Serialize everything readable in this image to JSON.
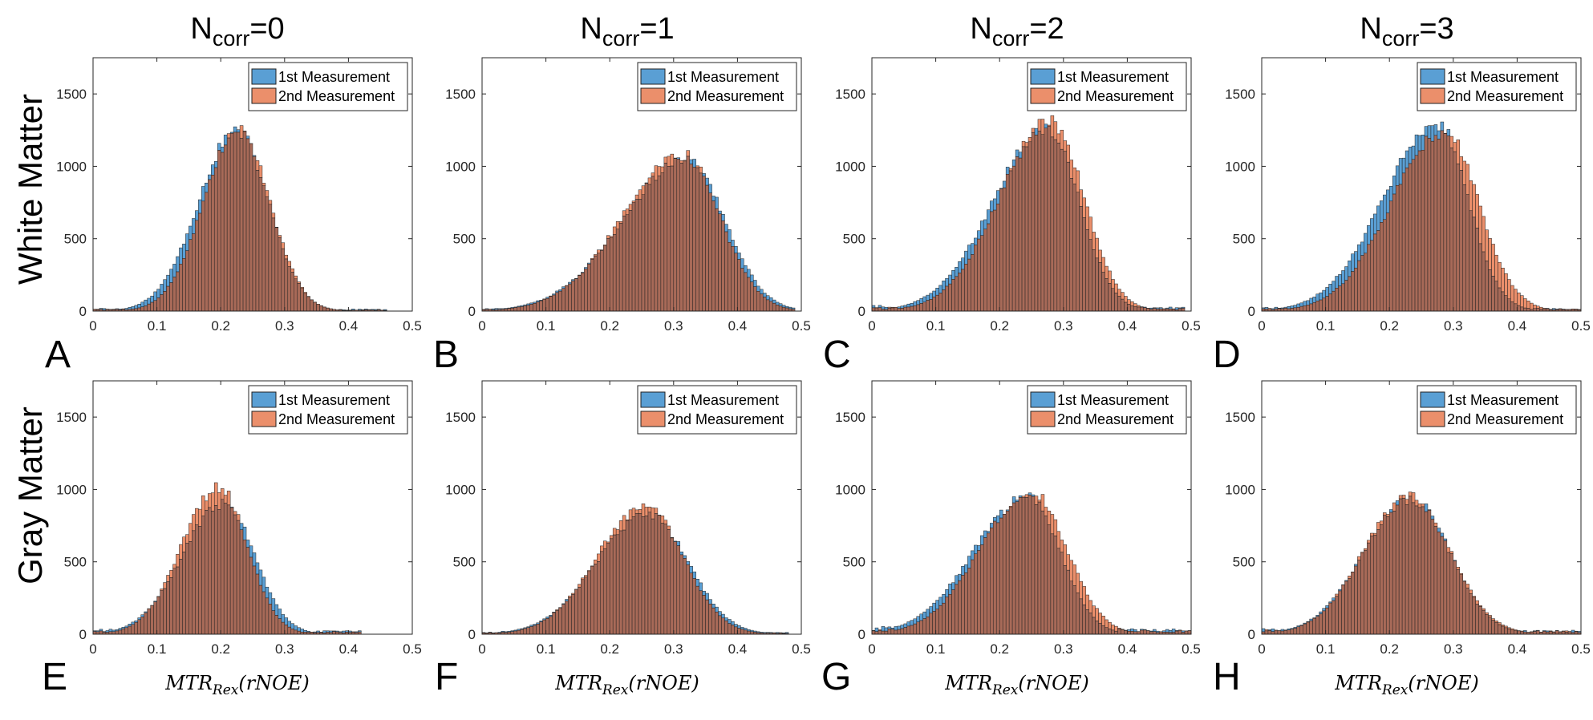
{
  "figure": {
    "column_titles": [
      {
        "base": "N",
        "sub": "corr",
        "suffix": "=0"
      },
      {
        "base": "N",
        "sub": "corr",
        "suffix": "=1"
      },
      {
        "base": "N",
        "sub": "corr",
        "suffix": "=2"
      },
      {
        "base": "N",
        "sub": "corr",
        "suffix": "=3"
      }
    ],
    "row_titles": [
      "White Matter",
      "Gray Matter"
    ],
    "panel_letters": [
      "A",
      "B",
      "C",
      "D",
      "E",
      "F",
      "G",
      "H"
    ],
    "x_axis_label": {
      "base": "MTR",
      "sub": "Rex",
      "suffix": "(rNOE)"
    },
    "legend": [
      "1st Measurement",
      "2nd Measurement"
    ],
    "colors": {
      "series1": "#5a9fd4",
      "series2": "#eb8f6b",
      "overlap": "#a86a58",
      "edge": "#222222"
    }
  },
  "chart_data": [
    {
      "panel": "A",
      "type": "bar",
      "title": "",
      "xlabel": "",
      "ylabel": "",
      "xlim": [
        0,
        0.5
      ],
      "ylim": [
        0,
        1750
      ],
      "xticks": [
        "0",
        "0.1",
        "0.2",
        "0.3",
        "0.4",
        "0.5"
      ],
      "yticks": [
        "0",
        "500",
        "1000",
        "1500"
      ],
      "legend_position": "top-right",
      "series": [
        {
          "name": "1st Measurement",
          "distribution": {
            "mean": 0.225,
            "sd_left": 0.06,
            "sd_right": 0.05,
            "peak": 1240,
            "floor": 15,
            "xmax": 0.46
          }
        },
        {
          "name": "2nd Measurement",
          "distribution": {
            "mean": 0.228,
            "sd_left": 0.055,
            "sd_right": 0.049,
            "peak": 1250,
            "floor": 10,
            "xmax": 0.46
          }
        }
      ]
    },
    {
      "panel": "B",
      "type": "bar",
      "title": "",
      "xlabel": "",
      "ylabel": "",
      "xlim": [
        0,
        0.5
      ],
      "ylim": [
        0,
        1750
      ],
      "xticks": [
        "0",
        "0.1",
        "0.2",
        "0.3",
        "0.4",
        "0.5"
      ],
      "yticks": [
        "0",
        "500",
        "1000",
        "1500"
      ],
      "legend_position": "top-right",
      "series": [
        {
          "name": "1st Measurement",
          "distribution": {
            "mean": 0.32,
            "sd_left": 0.1,
            "sd_right": 0.06,
            "peak": 1040,
            "floor": 15,
            "xmax": 0.49
          }
        },
        {
          "name": "2nd Measurement",
          "distribution": {
            "mean": 0.315,
            "sd_left": 0.095,
            "sd_right": 0.058,
            "peak": 1080,
            "floor": 10,
            "xmax": 0.49
          }
        }
      ]
    },
    {
      "panel": "C",
      "type": "bar",
      "title": "",
      "xlabel": "",
      "ylabel": "",
      "xlim": [
        0,
        0.5
      ],
      "ylim": [
        0,
        1750
      ],
      "xticks": [
        "0",
        "0.1",
        "0.2",
        "0.3",
        "0.4",
        "0.5"
      ],
      "yticks": [
        "0",
        "500",
        "1000",
        "1500"
      ],
      "legend_position": "top-right",
      "series": [
        {
          "name": "1st Measurement",
          "distribution": {
            "mean": 0.275,
            "sd_left": 0.085,
            "sd_right": 0.05,
            "peak": 1260,
            "floor": 30,
            "xmax": 0.49
          }
        },
        {
          "name": "2nd Measurement",
          "distribution": {
            "mean": 0.28,
            "sd_left": 0.08,
            "sd_right": 0.052,
            "peak": 1310,
            "floor": 20,
            "xmax": 0.49
          }
        }
      ]
    },
    {
      "panel": "D",
      "type": "bar",
      "title": "",
      "xlabel": "",
      "ylabel": "",
      "xlim": [
        0,
        0.5
      ],
      "ylim": [
        0,
        1750
      ],
      "xticks": [
        "0",
        "0.1",
        "0.2",
        "0.3",
        "0.4",
        "0.5"
      ],
      "yticks": [
        "0",
        "500",
        "1000",
        "1500"
      ],
      "legend_position": "top-right",
      "series": [
        {
          "name": "1st Measurement",
          "distribution": {
            "mean": 0.275,
            "sd_left": 0.085,
            "sd_right": 0.048,
            "peak": 1290,
            "floor": 20,
            "xmax": 0.5
          }
        },
        {
          "name": "2nd Measurement",
          "distribution": {
            "mean": 0.285,
            "sd_left": 0.082,
            "sd_right": 0.055,
            "peak": 1240,
            "floor": 15,
            "xmax": 0.5
          }
        }
      ]
    },
    {
      "panel": "E",
      "type": "bar",
      "title": "",
      "xlabel": "",
      "ylabel": "",
      "xlim": [
        0,
        0.5
      ],
      "ylim": [
        0,
        1750
      ],
      "xticks": [
        "0",
        "0.1",
        "0.2",
        "0.3",
        "0.4",
        "0.5"
      ],
      "yticks": [
        "0",
        "500",
        "1000",
        "1500"
      ],
      "legend_position": "top-right",
      "series": [
        {
          "name": "1st Measurement",
          "distribution": {
            "mean": 0.205,
            "sd_left": 0.065,
            "sd_right": 0.048,
            "peak": 900,
            "floor": 25,
            "xmax": 0.42
          }
        },
        {
          "name": "2nd Measurement",
          "distribution": {
            "mean": 0.197,
            "sd_left": 0.058,
            "sd_right": 0.045,
            "peak": 1010,
            "floor": 20,
            "xmax": 0.42
          }
        }
      ]
    },
    {
      "panel": "F",
      "type": "bar",
      "title": "",
      "xlabel": "",
      "ylabel": "",
      "xlim": [
        0,
        0.5
      ],
      "ylim": [
        0,
        1750
      ],
      "xticks": [
        "0",
        "0.1",
        "0.2",
        "0.3",
        "0.4",
        "0.5"
      ],
      "yticks": [
        "0",
        "500",
        "1000",
        "1500"
      ],
      "legend_position": "top-right",
      "series": [
        {
          "name": "1st Measurement",
          "distribution": {
            "mean": 0.26,
            "sd_left": 0.08,
            "sd_right": 0.062,
            "peak": 830,
            "floor": 15,
            "xmax": 0.48
          }
        },
        {
          "name": "2nd Measurement",
          "distribution": {
            "mean": 0.255,
            "sd_left": 0.075,
            "sd_right": 0.06,
            "peak": 880,
            "floor": 10,
            "xmax": 0.48
          }
        }
      ]
    },
    {
      "panel": "G",
      "type": "bar",
      "title": "",
      "xlabel": "",
      "ylabel": "",
      "xlim": [
        0,
        0.5
      ],
      "ylim": [
        0,
        1750
      ],
      "xticks": [
        "0",
        "0.1",
        "0.2",
        "0.3",
        "0.4",
        "0.5"
      ],
      "yticks": [
        "0",
        "500",
        "1000",
        "1500"
      ],
      "legend_position": "top-right",
      "series": [
        {
          "name": "1st Measurement",
          "distribution": {
            "mean": 0.245,
            "sd_left": 0.085,
            "sd_right": 0.05,
            "peak": 950,
            "floor": 40,
            "xmax": 0.5
          }
        },
        {
          "name": "2nd Measurement",
          "distribution": {
            "mean": 0.25,
            "sd_left": 0.08,
            "sd_right": 0.055,
            "peak": 980,
            "floor": 30,
            "xmax": 0.5
          }
        }
      ]
    },
    {
      "panel": "H",
      "type": "bar",
      "title": "",
      "xlabel": "",
      "ylabel": "",
      "xlim": [
        0,
        0.5
      ],
      "ylim": [
        0,
        1750
      ],
      "xticks": [
        "0",
        "0.1",
        "0.2",
        "0.3",
        "0.4",
        "0.5"
      ],
      "yticks": [
        "0",
        "500",
        "1000",
        "1500"
      ],
      "legend_position": "top-right",
      "series": [
        {
          "name": "1st Measurement",
          "distribution": {
            "mean": 0.235,
            "sd_left": 0.075,
            "sd_right": 0.06,
            "peak": 930,
            "floor": 30,
            "xmax": 0.5
          }
        },
        {
          "name": "2nd Measurement",
          "distribution": {
            "mean": 0.232,
            "sd_left": 0.072,
            "sd_right": 0.063,
            "peak": 950,
            "floor": 25,
            "xmax": 0.5
          }
        }
      ]
    }
  ]
}
